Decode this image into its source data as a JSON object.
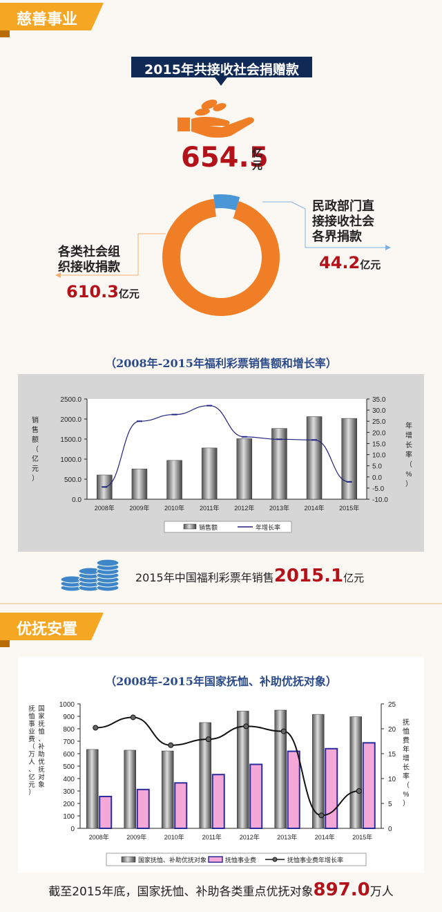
{
  "section1": {
    "tab_label": "慈善事业"
  },
  "donation": {
    "header": "2015年共接收社会捐赠款",
    "total_value": "654.5",
    "total_unit": "亿元",
    "right_label_lines": [
      "民政部门直",
      "接接收社会",
      "各界捐款"
    ],
    "right_value": "44.2",
    "right_unit": "亿元",
    "left_label_lines": [
      "各类社会组",
      "织接收捐款"
    ],
    "left_value": "610.3",
    "left_unit": "亿元",
    "colors": {
      "orange": "#f07e26",
      "blue": "#4a97d8",
      "red": "#b3121a",
      "navy": "#112a55"
    }
  },
  "lottery_sales_note": {
    "prefix": "2015年中国福利彩票年销售",
    "value": "2015.1",
    "unit": "亿元"
  },
  "section2": {
    "tab_label": "优抚安置"
  },
  "pension_note": {
    "prefix": "截至2015年底，国家抚恤、补助各类重点优抚对象",
    "value": "897.0",
    "unit": "万人"
  },
  "chart_data": [
    {
      "type": "bar",
      "title": "（2008年-2015年福利彩票销售额和增长率）",
      "categories": [
        "2008年",
        "2009年",
        "2010年",
        "2011年",
        "2012年",
        "2013年",
        "2014年",
        "2015年"
      ],
      "series": [
        {
          "name": "销售额",
          "type": "bar",
          "axis": "left",
          "values": [
            604,
            756,
            968,
            1278,
            1510,
            1765,
            2060,
            2015
          ]
        },
        {
          "name": "年增长率",
          "type": "line",
          "axis": "right",
          "values": [
            -4.5,
            25.0,
            28.0,
            32.0,
            18.0,
            16.9,
            16.6,
            -2.2
          ]
        }
      ],
      "ylabel": "销售额（亿元）",
      "y2label": "年增长率（%）",
      "ylim": [
        0,
        2500
      ],
      "y2lim": [
        -10,
        35
      ],
      "yticks": [
        "2500.0",
        "2000.0",
        "1500.0",
        "1000.0",
        "500.0",
        "0.0"
      ],
      "y2ticks": [
        "35.0",
        "30.0",
        "25.0",
        "20.0",
        "15.0",
        "10.0",
        "5.0",
        "0.0",
        "-5.0",
        "-10.0"
      ],
      "legend": "bottom",
      "grid": false
    },
    {
      "type": "bar",
      "title": "（2008年-2015年国家抚恤、补助优抚对象）",
      "categories": [
        "2008年",
        "2009年",
        "2010年",
        "2011年",
        "2012年",
        "2013年",
        "2014年",
        "2015年"
      ],
      "series": [
        {
          "name": "国家抚恤、补助优抚对象",
          "type": "bar",
          "axis": "left",
          "values": [
            634,
            628,
            622,
            850,
            942,
            950,
            916,
            897
          ]
        },
        {
          "name": "抚恤事业费",
          "type": "bar",
          "axis": "left",
          "values": [
            256,
            312,
            365,
            432,
            514,
            619,
            640,
            687
          ]
        },
        {
          "name": "抚恤事业费年增长率",
          "type": "line",
          "axis": "right",
          "values": [
            20.2,
            22.3,
            16.7,
            17.9,
            20.5,
            19.5,
            2.6,
            7.5
          ]
        }
      ],
      "ylabel": "抚恤事业费（万人、亿元）",
      "ylabel2": "国家抚恤、补助优抚对象",
      "y2label": "抚恤费年增长率（%）",
      "ylim": [
        0,
        1000
      ],
      "y2lim": [
        0,
        25
      ],
      "yticks": [
        "1000",
        "900",
        "800",
        "700",
        "600",
        "500",
        "400",
        "300",
        "200",
        "100",
        "0"
      ],
      "y2ticks": [
        "25",
        "20",
        "15",
        "10",
        "5",
        "0"
      ],
      "legend": "bottom",
      "grid": false
    }
  ]
}
